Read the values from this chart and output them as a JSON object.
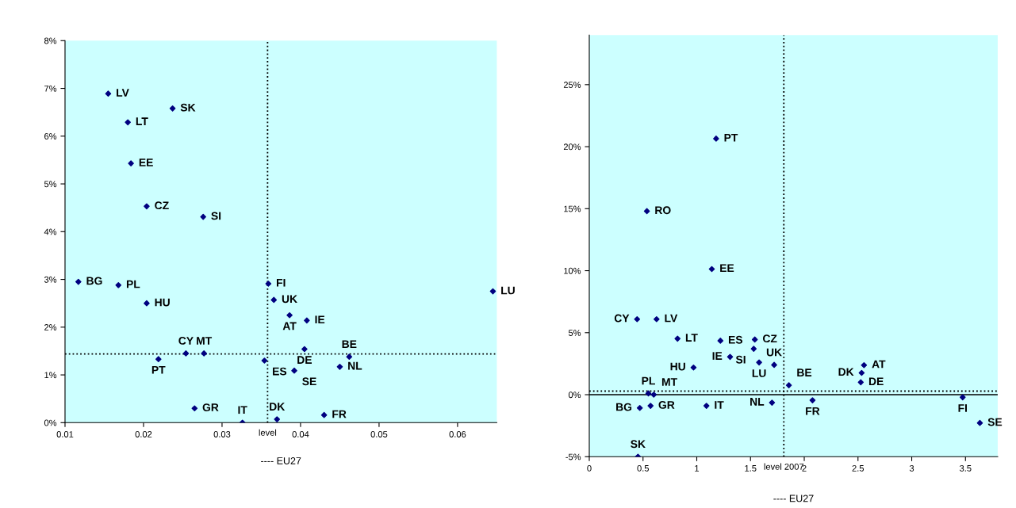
{
  "chart_data": [
    {
      "type": "scatter",
      "series": [
        {
          "color": "#000080",
          "x": [
            0.0155,
            0.0237,
            0.018,
            0.0184,
            0.0204,
            0.0276,
            0.0117,
            0.0168,
            0.0204,
            0.0219,
            0.0254,
            0.0277,
            0.0265,
            0.0326,
            0.0354,
            0.0359,
            0.0366,
            0.0386,
            0.0408,
            0.0405,
            0.0462,
            0.0392,
            0.045,
            0.037,
            0.043,
            0.0645
          ],
          "values": [
            6.89,
            6.58,
            6.29,
            5.43,
            4.53,
            4.31,
            2.95,
            2.88,
            2.5,
            1.33,
            1.45,
            1.45,
            0.3,
            0.0,
            1.3,
            2.91,
            2.57,
            2.25,
            2.14,
            1.54,
            1.38,
            1.09,
            1.17,
            0.07,
            0.16,
            2.75
          ]
        }
      ],
      "marker": "diamond",
      "xlim": [
        0.01,
        0.065
      ],
      "xticks": [
        0.01,
        0.02,
        0.03,
        0.04,
        0.05,
        0.06
      ],
      "ylim": [
        0,
        8
      ],
      "yticks": [
        {
          "value": 0,
          "label": "0%"
        },
        {
          "value": 1,
          "label": "1%"
        },
        {
          "value": 2,
          "label": "2%"
        },
        {
          "value": 3,
          "label": "3%"
        },
        {
          "value": 4,
          "label": "4%"
        },
        {
          "value": 5,
          "label": "5%"
        },
        {
          "value": 6,
          "label": "6%"
        },
        {
          "value": 7,
          "label": "7%"
        },
        {
          "value": 8,
          "label": "8%"
        }
      ],
      "ref_lines": [
        {
          "axis": "x",
          "value": 0.0358,
          "label": "level",
          "line_style": "dotted",
          "color": "#000000"
        },
        {
          "axis": "y",
          "value": 1.44,
          "label": null,
          "line_style": "dotted",
          "color": "#000000"
        }
      ],
      "annotations": [
        {
          "text": "LV",
          "x": 0.0155,
          "y": 6.89
        },
        {
          "text": "SK",
          "x": 0.0237,
          "y": 6.58
        },
        {
          "text": "LT",
          "x": 0.018,
          "y": 6.29
        },
        {
          "text": "EE",
          "x": 0.0184,
          "y": 5.43
        },
        {
          "text": "CZ",
          "x": 0.0204,
          "y": 4.53
        },
        {
          "text": "SI",
          "x": 0.0276,
          "y": 4.31
        },
        {
          "text": "BG",
          "x": 0.0117,
          "y": 2.95
        },
        {
          "text": "PL",
          "x": 0.0168,
          "y": 2.88
        },
        {
          "text": "HU",
          "x": 0.0204,
          "y": 2.5
        },
        {
          "text": "PT",
          "x": 0.0219,
          "y": 1.33
        },
        {
          "text": "CY",
          "x": 0.0254,
          "y": 1.45
        },
        {
          "text": "MT",
          "x": 0.0277,
          "y": 1.45
        },
        {
          "text": "GR",
          "x": 0.0265,
          "y": 0.3
        },
        {
          "text": "IT",
          "x": 0.0326,
          "y": 0.0
        },
        {
          "text": "ES",
          "x": 0.0354,
          "y": 1.3
        },
        {
          "text": "FI",
          "x": 0.0359,
          "y": 2.91
        },
        {
          "text": "UK",
          "x": 0.0366,
          "y": 2.57
        },
        {
          "text": "AT",
          "x": 0.0386,
          "y": 2.25
        },
        {
          "text": "IE",
          "x": 0.0408,
          "y": 2.14
        },
        {
          "text": "DE",
          "x": 0.0405,
          "y": 1.54
        },
        {
          "text": "BE",
          "x": 0.0462,
          "y": 1.38
        },
        {
          "text": "SE",
          "x": 0.0392,
          "y": 1.09
        },
        {
          "text": "NL",
          "x": 0.045,
          "y": 1.17
        },
        {
          "text": "DK",
          "x": 0.037,
          "y": 0.07
        },
        {
          "text": "FR",
          "x": 0.043,
          "y": 0.16
        },
        {
          "text": "LU",
          "x": 0.0645,
          "y": 2.75
        },
        "---- EU27"
      ]
    },
    {
      "type": "scatter",
      "series": [
        {
          "color": "#000080",
          "x": [
            1.18,
            0.536,
            1.14,
            0.445,
            0.626,
            0.821,
            1.22,
            1.54,
            1.53,
            1.31,
            1.58,
            1.72,
            0.97,
            0.55,
            0.6,
            0.47,
            0.57,
            1.09,
            1.7,
            0.453,
            1.857,
            2.077,
            2.556,
            2.534,
            2.526,
            3.474,
            3.634
          ],
          "values": [
            20.65,
            14.8,
            10.13,
            6.09,
            6.09,
            4.52,
            4.35,
            4.45,
            3.7,
            3.05,
            2.6,
            2.4,
            2.19,
            0.1,
            0.0,
            -1.07,
            -0.9,
            -0.9,
            -0.64,
            -5.0,
            0.76,
            -0.45,
            2.38,
            1.76,
            1.0,
            -0.21,
            -2.28
          ]
        }
      ],
      "marker": "diamond",
      "xlim": [
        0,
        3.8
      ],
      "xticks": [
        0,
        0.5,
        1,
        1.5,
        2,
        2.5,
        3,
        3.5
      ],
      "ylim": [
        -5,
        29
      ],
      "yticks": [
        {
          "value": -5,
          "label": "-5%"
        },
        {
          "value": 0,
          "label": "0%"
        },
        {
          "value": 5,
          "label": "5%"
        },
        {
          "value": 10,
          "label": "10%"
        },
        {
          "value": 15,
          "label": "15%"
        },
        {
          "value": 20,
          "label": "20%"
        },
        {
          "value": 25,
          "label": "25%"
        }
      ],
      "ref_lines": [
        {
          "axis": "x",
          "value": 1.81,
          "label": "level 2007",
          "line_style": "dotted",
          "color": "#000000"
        },
        {
          "axis": "y",
          "value": 0.29,
          "label": null,
          "line_style": "dotted",
          "color": "#000000"
        },
        {
          "axis": "y",
          "value": 0,
          "label": null,
          "line_style": "solid",
          "color": "#000000"
        }
      ],
      "annotations": [
        {
          "text": "PT",
          "x": 1.18,
          "y": 20.65
        },
        {
          "text": "RO",
          "x": 0.536,
          "y": 14.8
        },
        {
          "text": "EE",
          "x": 1.14,
          "y": 10.13
        },
        {
          "text": "CY",
          "x": 0.445,
          "y": 6.09
        },
        {
          "text": "LV",
          "x": 0.626,
          "y": 6.09
        },
        {
          "text": "LT",
          "x": 0.821,
          "y": 4.52
        },
        {
          "text": "ES",
          "x": 1.22,
          "y": 4.35
        },
        {
          "text": "CZ",
          "x": 1.54,
          "y": 4.45
        },
        {
          "text": "SI",
          "x": 1.53,
          "y": 3.7
        },
        {
          "text": "IE",
          "x": 1.31,
          "y": 3.05
        },
        {
          "text": "LU",
          "x": 1.58,
          "y": 2.6
        },
        {
          "text": "UK",
          "x": 1.72,
          "y": 2.4
        },
        {
          "text": "HU",
          "x": 0.97,
          "y": 2.19
        },
        {
          "text": "PL",
          "x": 0.55,
          "y": 0.1
        },
        {
          "text": "MT",
          "x": 0.6,
          "y": 0.0
        },
        {
          "text": "BG",
          "x": 0.47,
          "y": -1.07
        },
        {
          "text": "GR",
          "x": 0.57,
          "y": -0.9
        },
        {
          "text": "IT",
          "x": 1.09,
          "y": -0.9
        },
        {
          "text": "NL",
          "x": 1.7,
          "y": -0.64
        },
        {
          "text": "SK",
          "x": 0.453,
          "y": -5.0
        },
        {
          "text": "BE",
          "x": 1.857,
          "y": 0.76
        },
        {
          "text": "FR",
          "x": 2.077,
          "y": -0.45
        },
        {
          "text": "AT",
          "x": 2.556,
          "y": 2.38
        },
        {
          "text": "DK",
          "x": 2.534,
          "y": 1.76
        },
        {
          "text": "DE",
          "x": 2.526,
          "y": 1.0
        },
        {
          "text": "FI",
          "x": 3.474,
          "y": -0.21
        },
        {
          "text": "SE",
          "x": 3.634,
          "y": -2.28
        },
        "---- EU27"
      ]
    }
  ]
}
